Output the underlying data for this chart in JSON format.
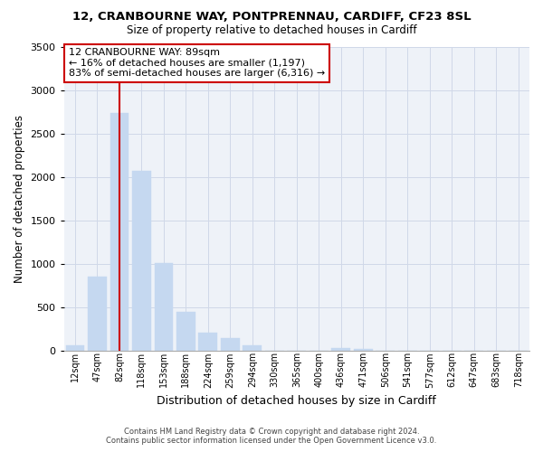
{
  "title": "12, CRANBOURNE WAY, PONTPRENNAU, CARDIFF, CF23 8SL",
  "subtitle": "Size of property relative to detached houses in Cardiff",
  "xlabel": "Distribution of detached houses by size in Cardiff",
  "ylabel": "Number of detached properties",
  "bar_color": "#c5d8f0",
  "vline_color": "#cc0000",
  "vline_position": 2,
  "categories": [
    "12sqm",
    "47sqm",
    "82sqm",
    "118sqm",
    "153sqm",
    "188sqm",
    "224sqm",
    "259sqm",
    "294sqm",
    "330sqm",
    "365sqm",
    "400sqm",
    "436sqm",
    "471sqm",
    "506sqm",
    "541sqm",
    "577sqm",
    "612sqm",
    "647sqm",
    "683sqm",
    "718sqm"
  ],
  "values": [
    60,
    850,
    2730,
    2070,
    1005,
    450,
    210,
    145,
    60,
    0,
    0,
    0,
    30,
    20,
    0,
    0,
    0,
    0,
    0,
    0,
    0
  ],
  "ylim": [
    0,
    3500
  ],
  "yticks": [
    0,
    500,
    1000,
    1500,
    2000,
    2500,
    3000,
    3500
  ],
  "annotation_title": "12 CRANBOURNE WAY: 89sqm",
  "annotation_line1": "← 16% of detached houses are smaller (1,197)",
  "annotation_line2": "83% of semi-detached houses are larger (6,316) →",
  "footnote1": "Contains HM Land Registry data © Crown copyright and database right 2024.",
  "footnote2": "Contains public sector information licensed under the Open Government Licence v3.0.",
  "background_color": "#eef2f8",
  "grid_color": "#d0d8e8"
}
